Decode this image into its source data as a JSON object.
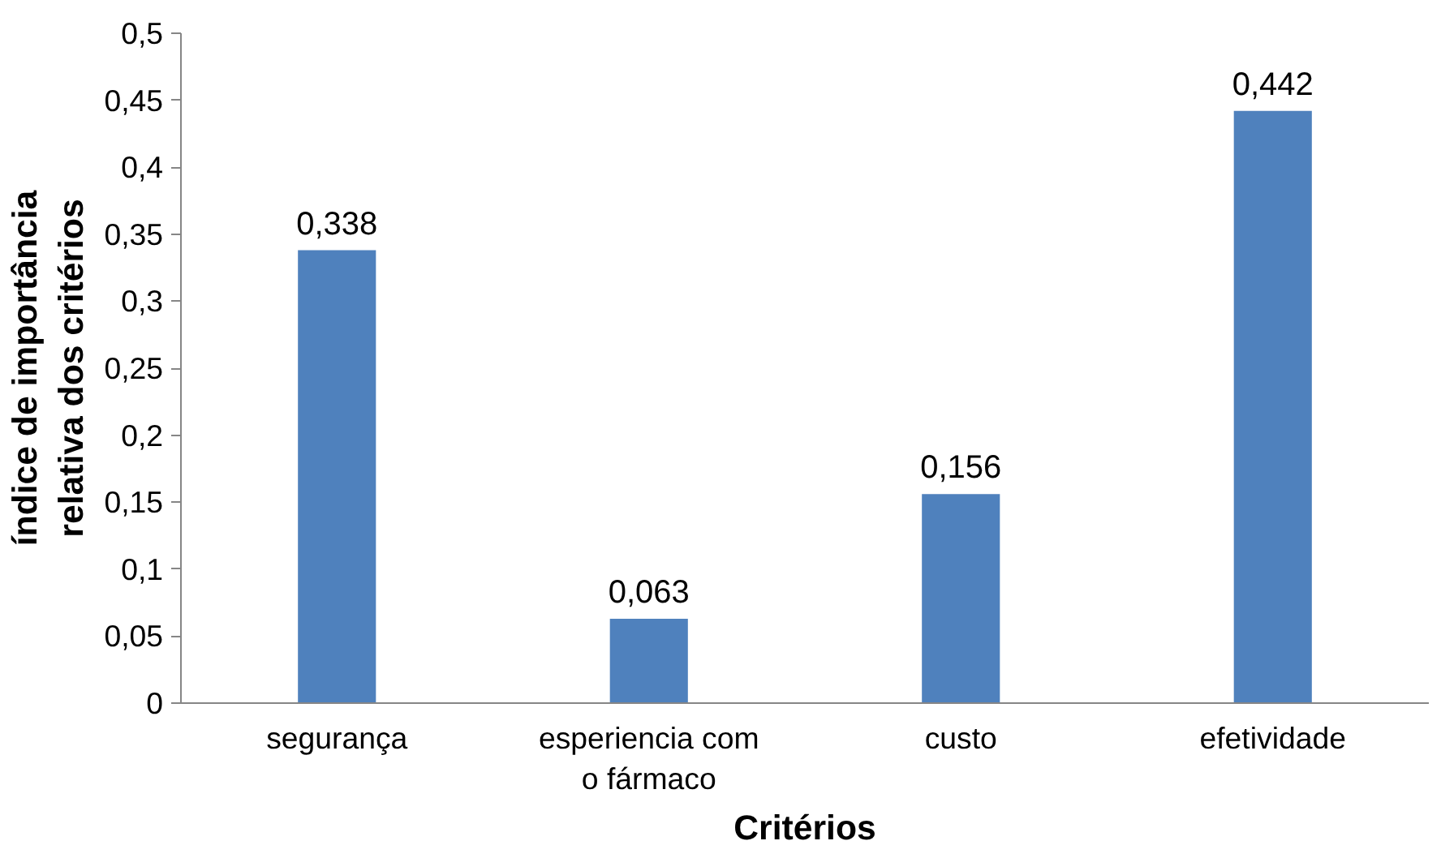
{
  "chart_data": {
    "type": "bar",
    "xlabel": "Critérios",
    "ylabel": "índice de importância relativa dos critérios",
    "categories": [
      "segurança",
      "esperiencia com o fármaco",
      "custo",
      "efetividade"
    ],
    "values": [
      0.338,
      0.063,
      0.156,
      0.442
    ],
    "value_labels": [
      "0,338",
      "0,063",
      "0,156",
      "0,442"
    ],
    "color": "#4f81bd",
    "ylim": [
      0,
      0.5
    ],
    "yticks": [
      0,
      {
        "value": 0.05,
        "label": "0,05"
      },
      {
        "value": 0.1,
        "label": "0,1"
      },
      {
        "value": 0.15,
        "label": "0,15"
      },
      {
        "value": 0.2,
        "label": "0,2"
      },
      {
        "value": 0.25,
        "label": "0,25"
      },
      {
        "value": 0.3,
        "label": "0,3"
      },
      {
        "value": 0.35,
        "label": "0,35"
      },
      {
        "value": 0.4,
        "label": "0,4"
      },
      {
        "value": 0.45,
        "label": "0,45"
      },
      {
        "value": 0.5,
        "label": "0,5"
      }
    ],
    "grid": false
  }
}
